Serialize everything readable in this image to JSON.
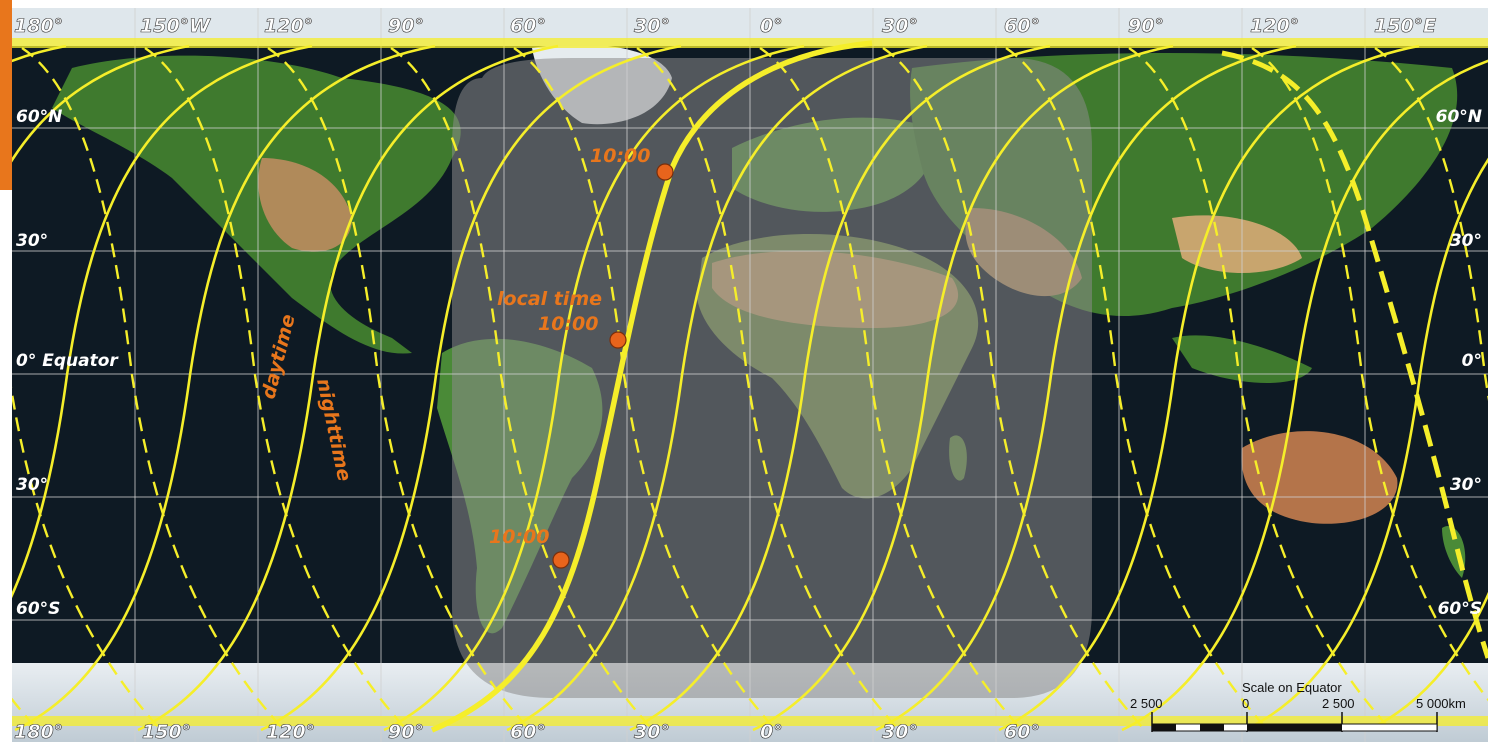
{
  "map": {
    "top_longitude_labels": [
      "180°",
      "150°W",
      "120°",
      "90°",
      "60°",
      "30°",
      "0°",
      "30°",
      "60°",
      "90°",
      "120°",
      "150°E"
    ],
    "bottom_longitude_labels": [
      "180°",
      "150°",
      "120°",
      "90°",
      "60°",
      "30°",
      "0°",
      "30°",
      "60°"
    ],
    "left_latitude_labels": [
      "60°N",
      "30°",
      "0° Equator",
      "30°",
      "60°S"
    ],
    "right_latitude_labels": [
      "60°N",
      "30°",
      "0°",
      "30°",
      "60°S"
    ],
    "labels": {
      "daytime": "daytime",
      "nighttime": "nighttime",
      "local_time": "local time",
      "time_top": "10:00",
      "time_mid": "10:00",
      "time_bottom": "10:00"
    },
    "scale": {
      "title": "Scale on Equator",
      "left": "2 500",
      "zero": "0",
      "right": "2 500",
      "end": "5 000km"
    },
    "colors": {
      "orbit_track": "#f5ee2a",
      "marker": "#e8641c",
      "label_orange": "#e8761c",
      "ocean": "#0e1a24",
      "daylight_overlay": "#8a8a8a",
      "grid": "#d0d0d0"
    }
  }
}
